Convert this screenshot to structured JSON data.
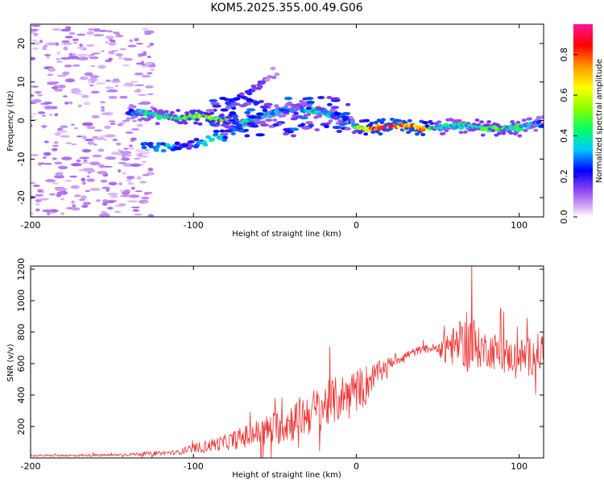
{
  "title": "KOM5.2025.355.00.49.G06",
  "chart_data": [
    {
      "type": "heatmap",
      "name": "spectrogram",
      "xlabel": "Height of straight line (km)",
      "ylabel": "Frequency (Hz)",
      "xlim": [
        -200,
        115
      ],
      "ylim": [
        -25,
        25
      ],
      "xticks": [
        -200,
        -100,
        0,
        100
      ],
      "yticks": [
        -20,
        -10,
        0,
        10,
        20
      ],
      "xtick_labels": [
        "-200",
        "-100",
        "0",
        "100"
      ],
      "ytick_labels": [
        "-20",
        "-10",
        "0",
        "10",
        "20"
      ],
      "colorbar": {
        "label": "Normalized spectral amplitude",
        "range": [
          0,
          0.95
        ],
        "ticks": [
          0.0,
          0.2,
          0.4,
          0.6,
          0.8
        ],
        "tick_labels": [
          "0.0",
          "0.2",
          "0.4",
          "0.6",
          "0.8"
        ]
      },
      "ridge": {
        "x": [
          -200,
          -190,
          -180,
          -170,
          -160,
          -150,
          -140,
          -130,
          -120,
          -110,
          -100,
          -90,
          -80,
          -70,
          -60,
          -50,
          -40,
          -30,
          -20,
          -10,
          -5,
          0,
          10,
          20,
          30,
          40,
          50,
          60,
          70,
          80,
          90,
          100,
          110,
          115
        ],
        "frequency": [
          1,
          0,
          2,
          -1,
          1,
          0,
          2,
          2,
          1,
          1,
          1,
          1,
          0,
          -1,
          1,
          2,
          3,
          3,
          2,
          1,
          0,
          -2,
          -2,
          -1.5,
          -1.5,
          -2,
          -2,
          -1.5,
          -1.5,
          -2,
          -2,
          -2,
          -1,
          -1
        ],
        "amplitude": [
          0.03,
          0.04,
          0.05,
          0.05,
          0.06,
          0.1,
          0.25,
          0.4,
          0.45,
          0.5,
          0.55,
          0.6,
          0.55,
          0.45,
          0.4,
          0.35,
          0.35,
          0.4,
          0.4,
          0.3,
          0.2,
          0.5,
          0.85,
          0.9,
          0.9,
          0.88,
          0.45,
          0.4,
          0.45,
          0.5,
          0.5,
          0.45,
          0.35,
          0.3
        ]
      },
      "branches": [
        {
          "name": "upper-branch",
          "x": [
            -80,
            -70,
            -60,
            -55,
            -50
          ],
          "frequency": [
            4,
            6,
            9,
            11,
            13
          ],
          "amplitude": [
            0.3,
            0.25,
            0.2,
            0.15,
            0.1
          ]
        },
        {
          "name": "lower-branch",
          "x": [
            -130,
            -120,
            -110,
            -100,
            -90,
            -80
          ],
          "frequency": [
            -6,
            -7,
            -7,
            -6,
            -5,
            -4
          ],
          "amplitude": [
            0.3,
            0.45,
            0.3,
            0.25,
            0.45,
            0.4
          ]
        }
      ]
    },
    {
      "type": "line",
      "name": "snr",
      "xlabel": "Height of straight line (km)",
      "ylabel": "SNR (v/v)",
      "xlim": [
        -200,
        115
      ],
      "ylim": [
        0,
        1220
      ],
      "xticks": [
        -200,
        -100,
        0,
        100
      ],
      "yticks": [
        200,
        400,
        600,
        800,
        1000,
        1200
      ],
      "xtick_labels": [
        "-200",
        "-100",
        "0",
        "100"
      ],
      "ytick_labels": [
        "200",
        "400",
        "600",
        "800",
        "1000",
        "1200"
      ],
      "color": "#ee3333",
      "envelope": {
        "x": [
          -200,
          -150,
          -110,
          -100,
          -90,
          -80,
          -70,
          -60,
          -50,
          -40,
          -30,
          -20,
          -10,
          -5,
          0,
          5,
          10,
          20,
          30,
          40,
          50,
          55,
          60,
          65,
          70,
          75,
          80,
          85,
          90,
          95,
          100,
          105,
          110,
          115
        ],
        "mean": [
          15,
          18,
          35,
          60,
          80,
          100,
          130,
          160,
          190,
          230,
          280,
          330,
          380,
          420,
          460,
          450,
          520,
          600,
          650,
          690,
          700,
          720,
          710,
          730,
          720,
          700,
          690,
          680,
          660,
          640,
          650,
          640,
          660,
          680
        ],
        "noise": [
          6,
          8,
          15,
          30,
          40,
          50,
          70,
          90,
          110,
          130,
          140,
          150,
          150,
          120,
          100,
          150,
          80,
          40,
          30,
          25,
          30,
          150,
          120,
          130,
          250,
          130,
          110,
          120,
          130,
          100,
          110,
          130,
          120,
          140
        ]
      }
    }
  ]
}
